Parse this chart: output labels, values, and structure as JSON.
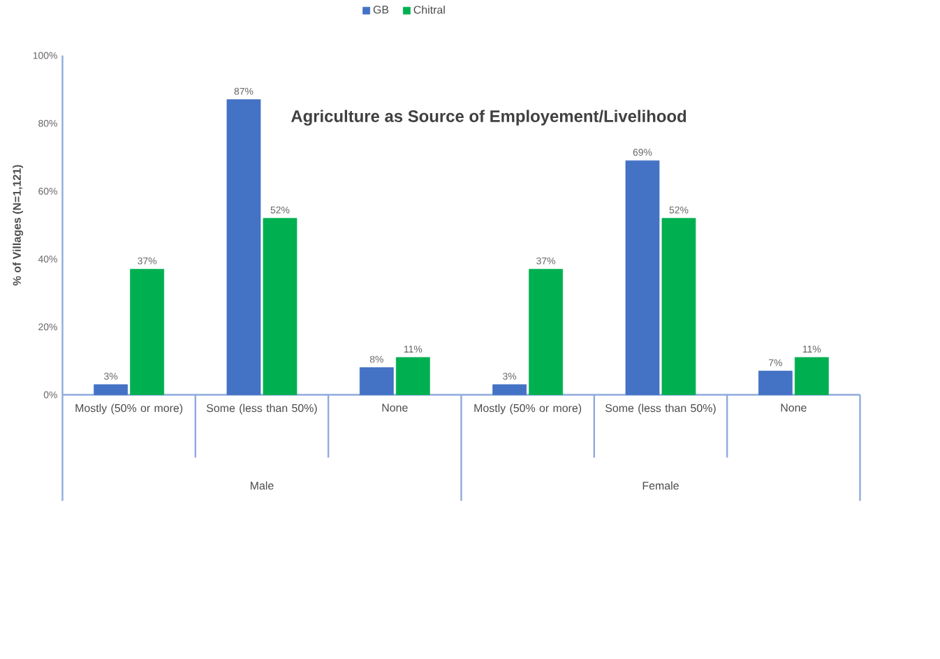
{
  "chart_data": {
    "type": "bar",
    "title": "Agriculture as Source of Employement/Livelihood",
    "ylabel": "% of Villages (N=1,121)",
    "categories": [
      "Mostly (50% or more)",
      "Some (less than 50%)",
      "None",
      "Mostly (50% or more)",
      "Some (less than 50%)",
      "None"
    ],
    "annotations": [
      "Male",
      "Female"
    ],
    "series": [
      {
        "name": "GB",
        "color": "#4472c4",
        "values": [
          3,
          87,
          8,
          3,
          69,
          7
        ],
        "value_labels": [
          "3%",
          "87%",
          "8%",
          "3%",
          "69%",
          "7%"
        ]
      },
      {
        "name": "Chitral",
        "color": "#00b050",
        "values": [
          37,
          52,
          11,
          37,
          52,
          11
        ],
        "value_labels": [
          "37%",
          "52%",
          "11%",
          "37%",
          "52%",
          "11%"
        ]
      }
    ],
    "ylim": [
      0,
      100
    ],
    "yticks": [
      {
        "value": 0,
        "label": "0%"
      },
      {
        "value": 20,
        "label": "20%"
      },
      {
        "value": 40,
        "label": "40%"
      },
      {
        "value": 60,
        "label": "60%"
      },
      {
        "value": 80,
        "label": "80%"
      },
      {
        "value": 100,
        "label": "100%"
      }
    ],
    "legend": "top",
    "grid": false
  }
}
